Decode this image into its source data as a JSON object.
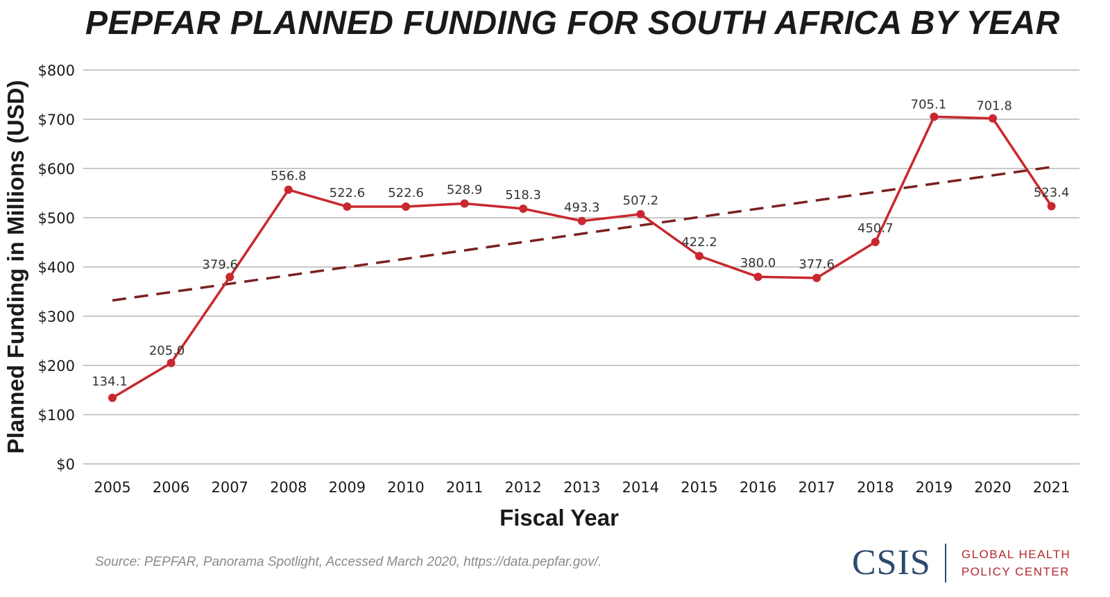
{
  "chart_data": {
    "type": "line",
    "title": "PEPFAR PLANNED FUNDING FOR SOUTH AFRICA BY YEAR",
    "xlabel": "Fiscal Year",
    "ylabel": "Planned Funding in Millions (USD)",
    "ylim": [
      0,
      800
    ],
    "yticks": [
      0,
      100,
      200,
      300,
      400,
      500,
      600,
      700,
      800
    ],
    "ytick_labels": [
      "$0",
      "$100",
      "$200",
      "$300",
      "$400",
      "$500",
      "$600",
      "$700",
      "$800"
    ],
    "categories": [
      "2005",
      "2006",
      "2007",
      "2008",
      "2009",
      "2010",
      "2011",
      "2012",
      "2013",
      "2014",
      "2015",
      "2016",
      "2017",
      "2018",
      "2019",
      "2020",
      "2021"
    ],
    "series": [
      {
        "name": "Planned Funding",
        "color": "#c8282e",
        "values": [
          134.1,
          205.0,
          379.6,
          556.8,
          522.6,
          522.6,
          528.9,
          518.3,
          493.3,
          507.2,
          422.2,
          380.0,
          377.6,
          450.7,
          705.1,
          701.8,
          523.4
        ],
        "labels": [
          "134.1",
          "205.0",
          "379.6",
          "556.8",
          "522.6",
          "522.6",
          "528.9",
          "518.3",
          "493.3",
          "507.2",
          "422.2",
          "380.0",
          "377.6",
          "450.7",
          "705.1",
          "701.8",
          "523.4"
        ]
      }
    ],
    "trendline": {
      "style": "dashed",
      "color": "#7a2020",
      "start": 332,
      "end": 603
    },
    "grid": true
  },
  "source_text": "Source: PEPFAR, Panorama Spotlight, Accessed March 2020, https://data.pepfar.gov/.",
  "logo": {
    "name": "CSIS",
    "line1": "GLOBAL HEALTH",
    "line2": "POLICY CENTER"
  }
}
